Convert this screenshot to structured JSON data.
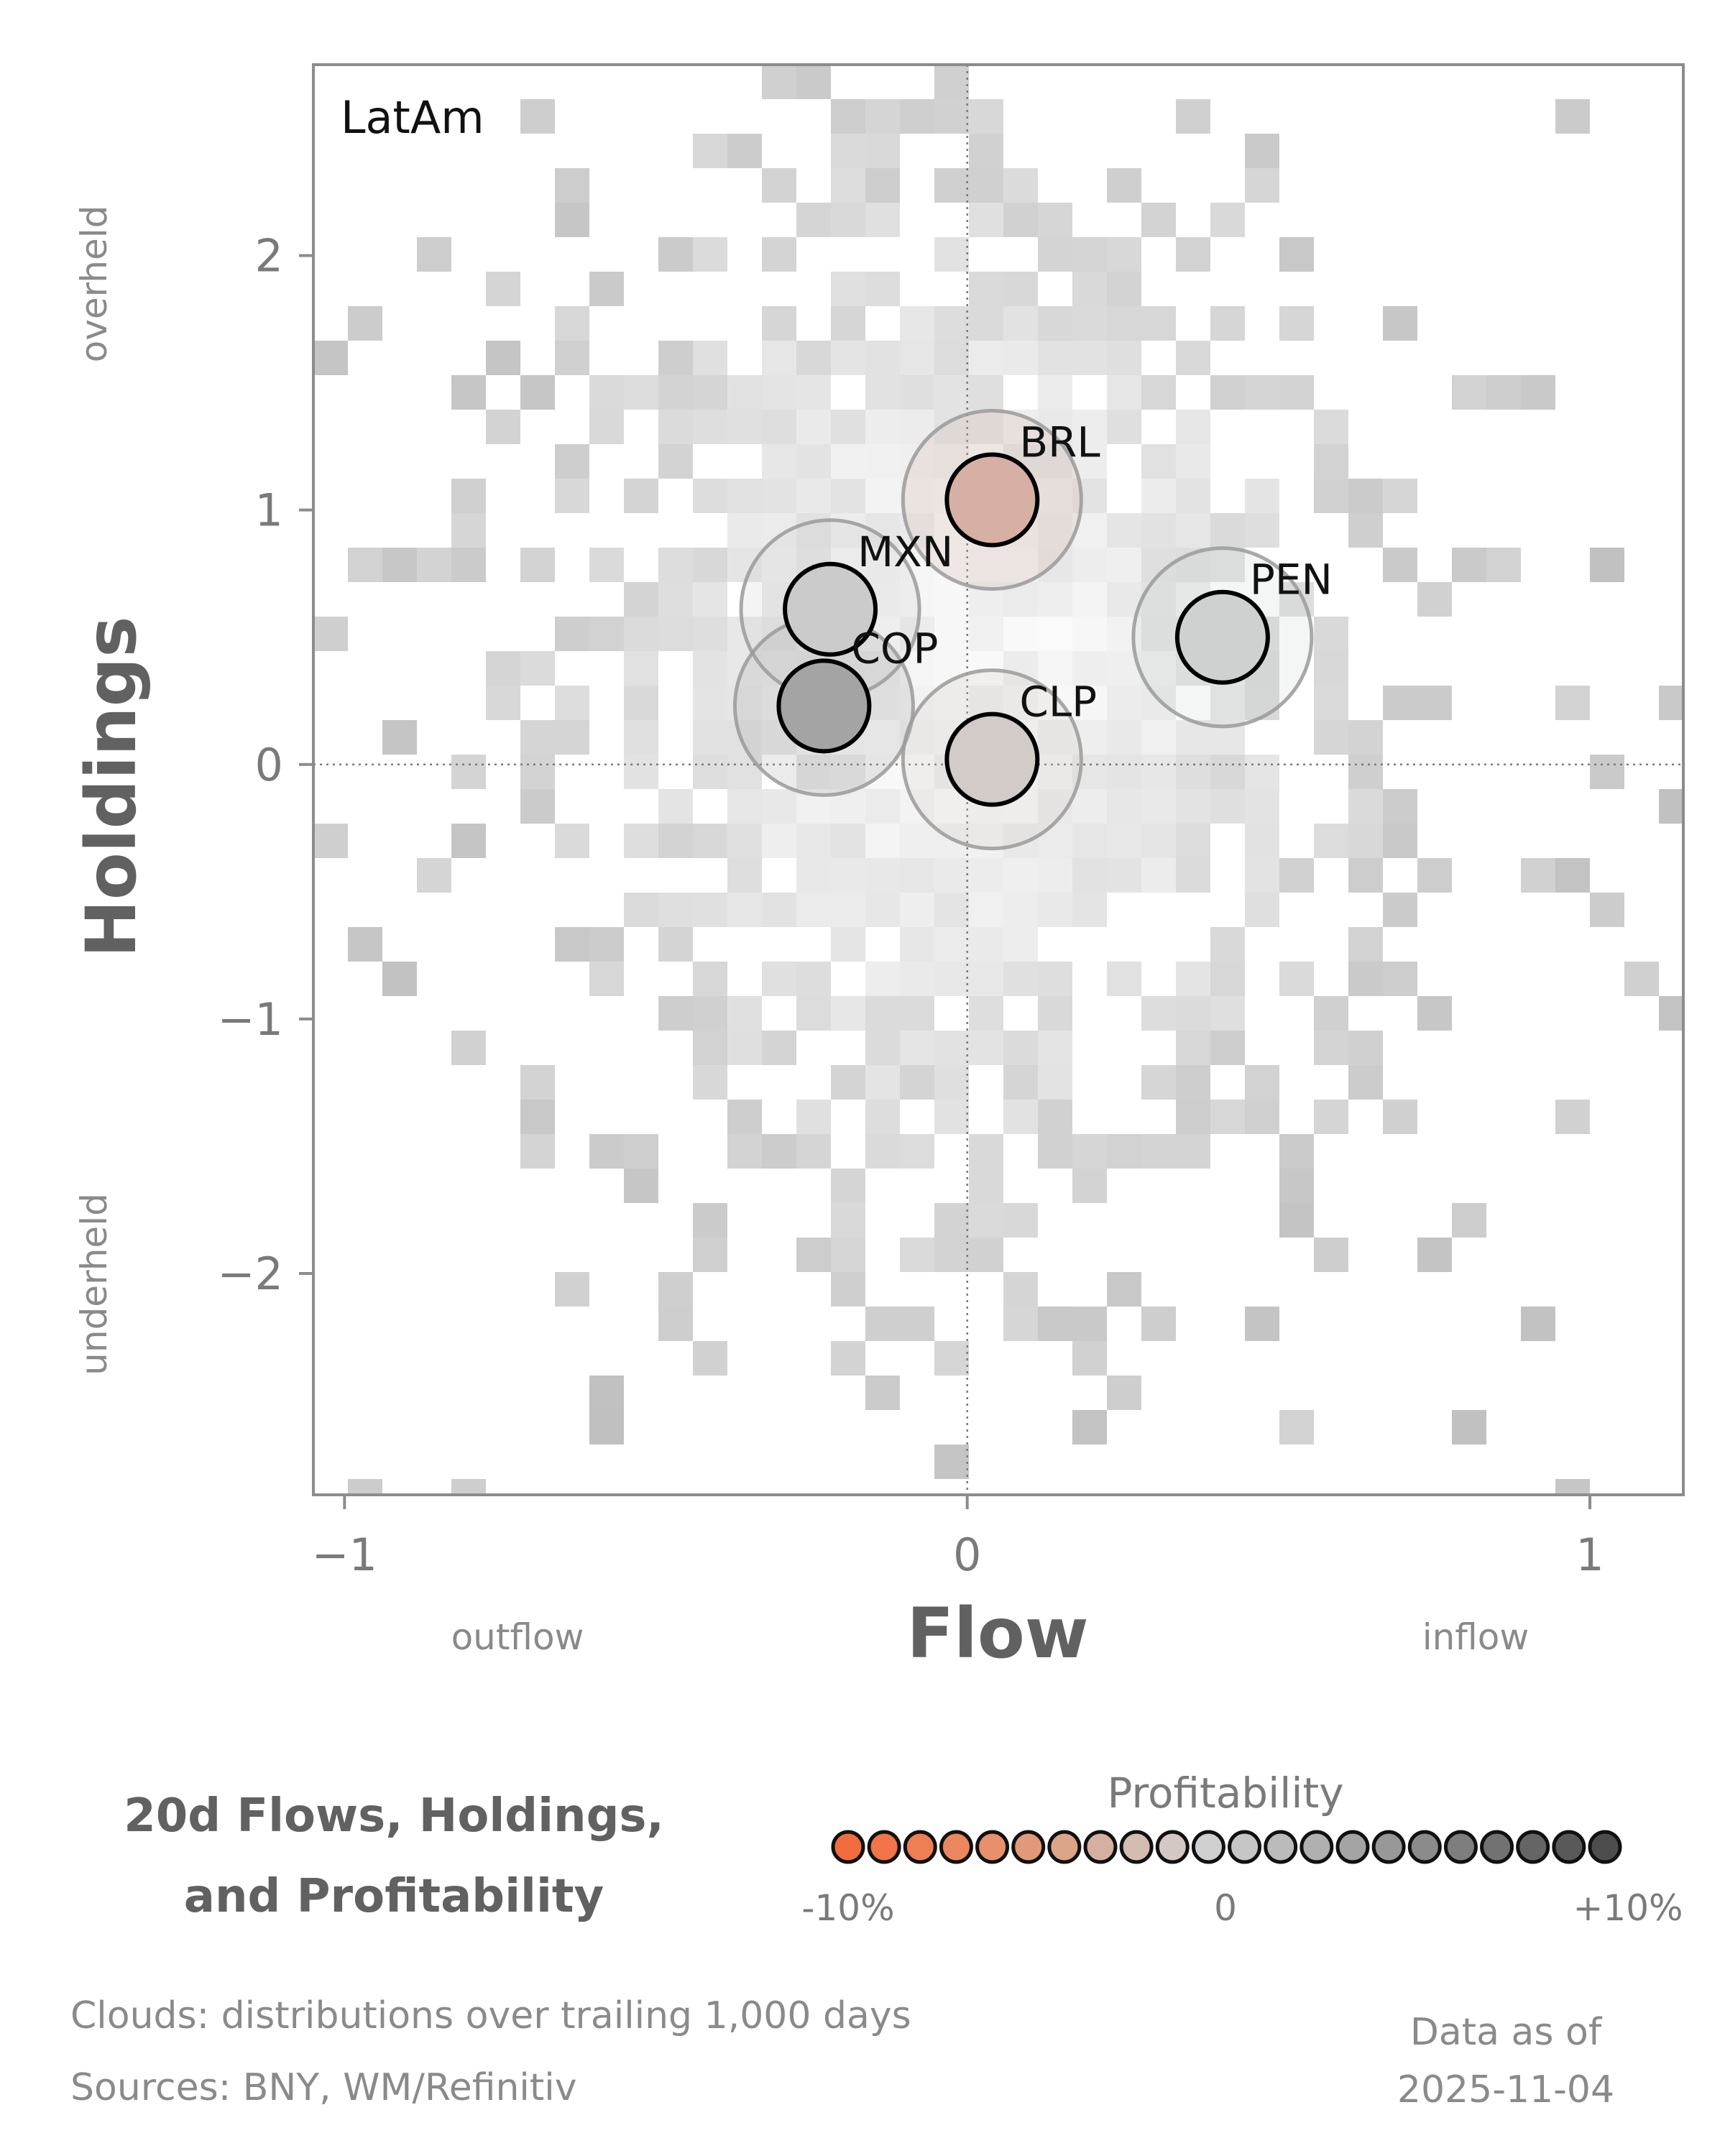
{
  "chart_data": {
    "type": "scatter",
    "panel_label": "LatAm",
    "xlabel": "Flow",
    "ylabel": "Holdings",
    "x_direction_labels": {
      "low": "outflow",
      "high": "inflow"
    },
    "y_direction_labels": {
      "low": "underheld",
      "high": "overheld"
    },
    "xlim": [
      -1.05,
      1.15
    ],
    "ylim": [
      -2.87,
      2.75
    ],
    "xticks": [
      -1,
      0,
      1
    ],
    "xtick_labels": [
      "−1",
      "0",
      "1"
    ],
    "yticks": [
      -2,
      -1,
      0,
      1,
      2
    ],
    "ytick_labels": [
      "−2",
      "−1",
      "0",
      "1",
      "2"
    ],
    "grid": false,
    "reference_lines": {
      "x": 0,
      "y": 0
    },
    "background": "2D histogram density cloud of historical flow/holdings observations (grey)",
    "series": [
      {
        "name": "BRL",
        "x": 0.04,
        "y": 1.04,
        "profitability_pct": -4,
        "color": "#d6b0a4"
      },
      {
        "name": "MXN",
        "x": -0.22,
        "y": 0.61,
        "profitability_pct": 2,
        "color": "#cbcbcb"
      },
      {
        "name": "COP",
        "x": -0.23,
        "y": 0.23,
        "profitability_pct": 6,
        "color": "#a4a4a4"
      },
      {
        "name": "CLP",
        "x": 0.04,
        "y": 0.02,
        "profitability_pct": -1,
        "color": "#d3cbc8"
      },
      {
        "name": "PEN",
        "x": 0.41,
        "y": 0.5,
        "profitability_pct": 1,
        "color": "#cfd1d1"
      }
    ],
    "colorbar": {
      "title": "Profitability",
      "tick_labels": [
        "-10%",
        "0",
        "+10%"
      ],
      "colors": [
        "#f26d3e",
        "#f07548",
        "#ee7e53",
        "#eb875e",
        "#e7906b",
        "#e19a79",
        "#dba588",
        "#d5b0a0",
        "#d4bcb2",
        "#d3c8c3",
        "#d0d0d0",
        "#c6c6c6",
        "#bbbbbb",
        "#b0b0b0",
        "#a4a4a4",
        "#989898",
        "#8b8b8b",
        "#7e7e7e",
        "#727272",
        "#656565",
        "#595959",
        "#4d4d4d"
      ]
    },
    "title": "20d Flows, Holdings, and Profitability",
    "title_lines": [
      "20d Flows, Holdings,",
      "and Profitability"
    ]
  },
  "footnotes": {
    "clouds": "Clouds:  distributions over trailing 1,000 days",
    "sources": "Sources:  BNY, WM/Refinitiv",
    "data_as_of_label": "Data as of",
    "data_as_of_date": "2025-11-04"
  }
}
